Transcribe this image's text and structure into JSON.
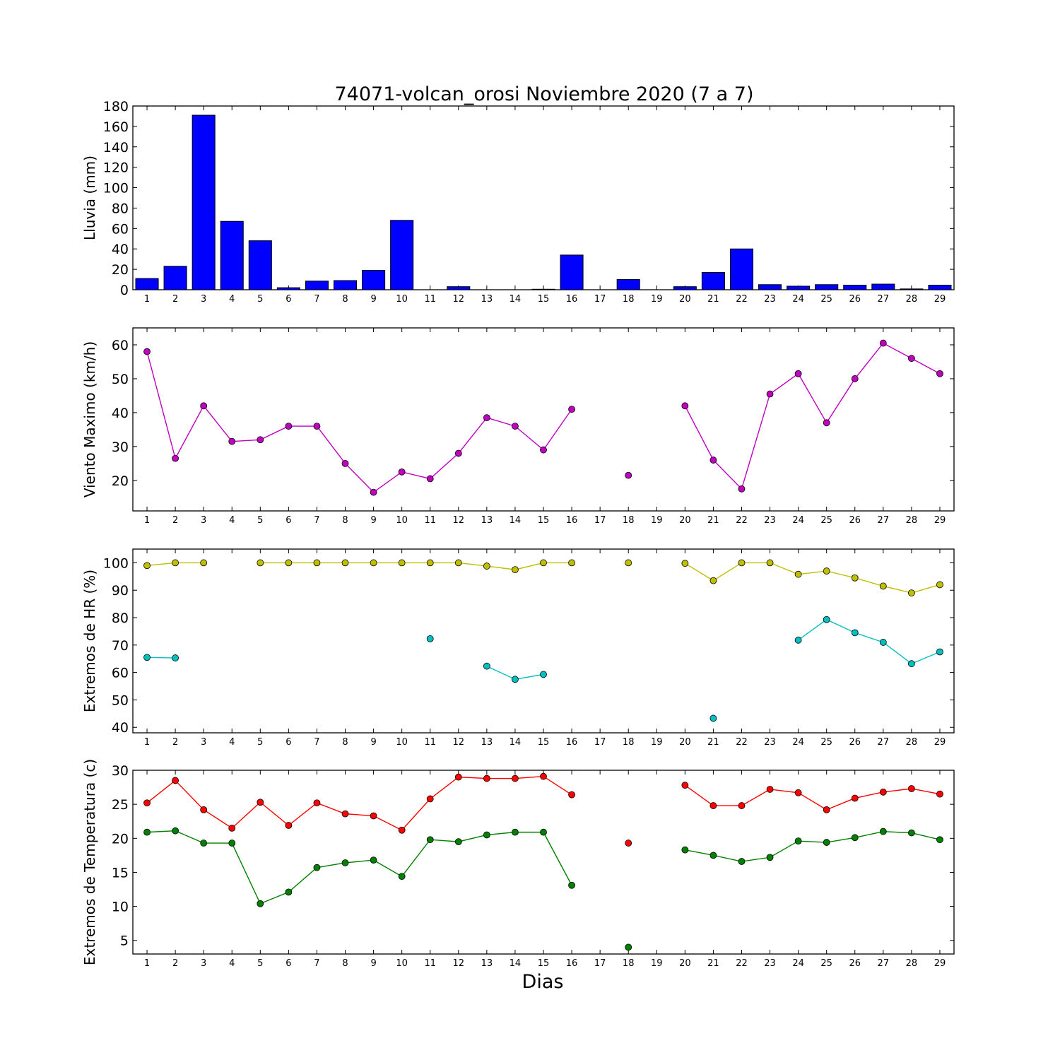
{
  "title": "74071-volcan_orosi Noviembre 2020  (7 a 7)",
  "xlabel": "Dias",
  "colors": {
    "rain": "#0000ff",
    "wind": "#bf00bf",
    "hr_max": "#bfbf00",
    "hr_min": "#00bfbf",
    "temp_max": "#ff0000",
    "temp_min": "#008000"
  },
  "chart_data": [
    {
      "type": "bar",
      "ylabel": "Lluvia (mm)",
      "ylim": [
        0,
        180
      ],
      "yticks": [
        0,
        20,
        40,
        60,
        80,
        100,
        120,
        140,
        160,
        180
      ],
      "categories": [
        "1",
        "2",
        "3",
        "4",
        "5",
        "6",
        "7",
        "8",
        "9",
        "10",
        "11",
        "12",
        "13",
        "14",
        "15",
        "16",
        "17",
        "18",
        "19",
        "20",
        "21",
        "22",
        "23",
        "24",
        "25",
        "26",
        "27",
        "28",
        "29"
      ],
      "values": [
        11,
        23,
        171,
        67,
        48,
        2,
        8.5,
        9,
        19,
        68,
        0,
        3,
        0,
        0,
        0.5,
        34,
        0,
        10,
        0,
        3,
        17,
        40,
        5,
        3.5,
        5,
        4.5,
        5.5,
        0.8,
        4.5
      ]
    },
    {
      "type": "line",
      "ylabel": "Viento Maximo (km/h)",
      "ylim": [
        11,
        65
      ],
      "yticks": [
        20,
        30,
        40,
        50,
        60
      ],
      "x": [
        1,
        2,
        3,
        4,
        5,
        6,
        7,
        8,
        9,
        10,
        11,
        12,
        13,
        14,
        15,
        16,
        17,
        18,
        19,
        20,
        21,
        22,
        23,
        24,
        25,
        26,
        27,
        28,
        29
      ],
      "series": [
        {
          "color_key": "wind",
          "values": [
            58,
            26.5,
            42,
            31.5,
            32,
            36,
            36,
            25,
            16.5,
            22.5,
            20.5,
            28,
            38.5,
            36,
            29,
            41,
            null,
            21.5,
            null,
            42,
            26,
            17.5,
            45.5,
            51.5,
            37,
            50,
            60.5,
            56,
            51.5
          ]
        }
      ]
    },
    {
      "type": "line",
      "ylabel": "Extremos de HR (%)",
      "ylim": [
        38,
        105
      ],
      "yticks": [
        40,
        50,
        60,
        70,
        80,
        90,
        100
      ],
      "x": [
        1,
        2,
        3,
        4,
        5,
        6,
        7,
        8,
        9,
        10,
        11,
        12,
        13,
        14,
        15,
        16,
        17,
        18,
        19,
        20,
        21,
        22,
        23,
        24,
        25,
        26,
        27,
        28,
        29
      ],
      "series": [
        {
          "color_key": "hr_max",
          "values": [
            99,
            100,
            100,
            null,
            100,
            100,
            100,
            100,
            100,
            100,
            100,
            100,
            98.8,
            97.5,
            100,
            100,
            null,
            100,
            null,
            99.8,
            93.5,
            100,
            100,
            95.8,
            97,
            94.5,
            91.5,
            89,
            92
          ]
        },
        {
          "color_key": "hr_min",
          "values": [
            65.5,
            65.3,
            null,
            null,
            null,
            null,
            null,
            null,
            null,
            null,
            72.3,
            null,
            62.3,
            57.5,
            59.3,
            null,
            null,
            null,
            null,
            null,
            43.3,
            null,
            null,
            71.8,
            79.3,
            74.5,
            71,
            63.2,
            67.5
          ]
        }
      ]
    },
    {
      "type": "line",
      "ylabel": "Extremos de Temperatura (c)",
      "ylim": [
        3,
        30
      ],
      "yticks": [
        5,
        10,
        15,
        20,
        25,
        30
      ],
      "x": [
        1,
        2,
        3,
        4,
        5,
        6,
        7,
        8,
        9,
        10,
        11,
        12,
        13,
        14,
        15,
        16,
        17,
        18,
        19,
        20,
        21,
        22,
        23,
        24,
        25,
        26,
        27,
        28,
        29
      ],
      "series": [
        {
          "color_key": "temp_max",
          "values": [
            25.2,
            28.5,
            24.2,
            21.5,
            25.3,
            21.9,
            25.2,
            23.6,
            23.3,
            21.2,
            25.8,
            29,
            28.8,
            28.8,
            29.1,
            26.4,
            null,
            19.3,
            null,
            27.8,
            24.8,
            24.8,
            27.2,
            26.7,
            24.2,
            25.9,
            26.8,
            27.3,
            26.5
          ]
        },
        {
          "color_key": "temp_min",
          "values": [
            20.9,
            21.1,
            19.3,
            19.3,
            10.4,
            12.1,
            15.7,
            16.4,
            16.8,
            14.4,
            19.8,
            19.5,
            20.5,
            20.9,
            20.9,
            13.1,
            null,
            4,
            null,
            18.3,
            17.5,
            16.6,
            17.2,
            19.6,
            19.4,
            20.1,
            21,
            20.8,
            19.8
          ]
        }
      ]
    }
  ]
}
